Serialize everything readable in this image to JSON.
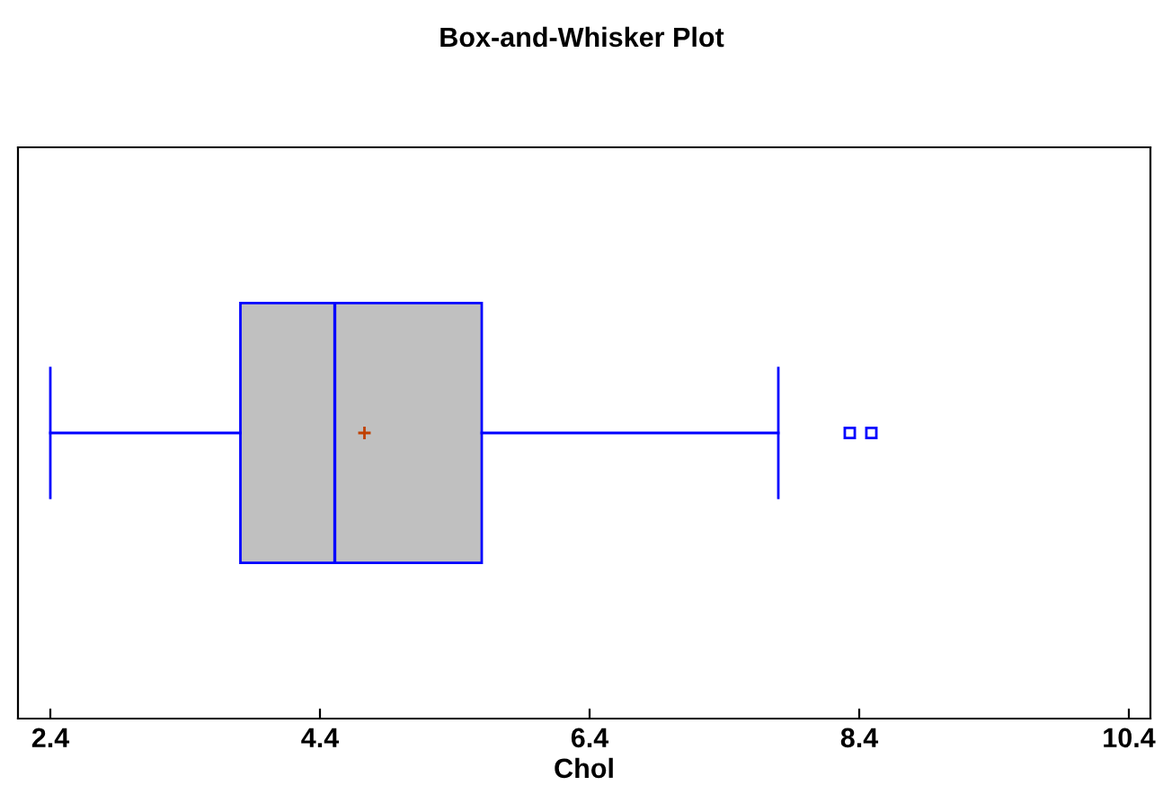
{
  "chart_data": {
    "type": "box",
    "orientation": "horizontal",
    "title": "Box-and-Whisker Plot",
    "xlabel": "Chol",
    "categories": [
      null
    ],
    "boxes": [
      {
        "low": 2.4,
        "q1": 3.81,
        "median": 4.51,
        "q3": 5.6,
        "high": 7.8,
        "mean": 4.73,
        "outliers": [
          8.33,
          8.49
        ]
      }
    ],
    "color": "#0000ff",
    "xlim": [
      2.16,
      10.56
    ],
    "xticks": [
      2.4,
      4.4,
      6.4,
      8.4,
      10.4
    ],
    "tick_labels": "x",
    "grid": false,
    "legend": false
  }
}
